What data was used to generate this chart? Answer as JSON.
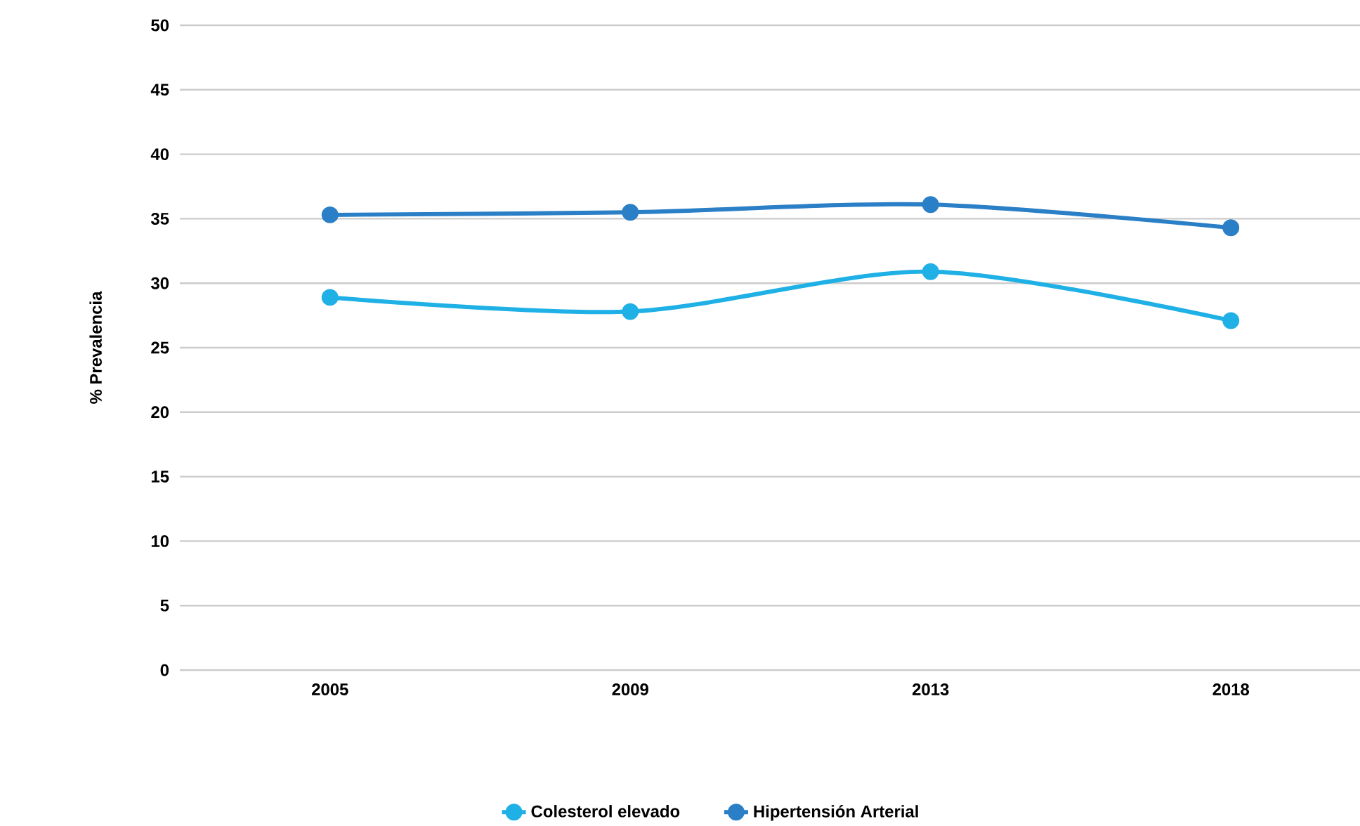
{
  "chart_data": {
    "type": "line",
    "ylabel": "% Prevalencia",
    "categories": [
      "2005",
      "2009",
      "2013",
      "2018"
    ],
    "series": [
      {
        "name": "Colesterol elevado",
        "color": "#1fb0e6",
        "values": [
          28.9,
          27.8,
          30.9,
          27.1
        ]
      },
      {
        "name": "Hipertensión Arterial",
        "color": "#2a7fc6",
        "values": [
          35.3,
          35.5,
          36.1,
          34.3
        ]
      }
    ],
    "ylim": [
      0,
      50
    ],
    "yticks": [
      0,
      5,
      10,
      15,
      20,
      25,
      30,
      35,
      40,
      45,
      50
    ],
    "grid": "y",
    "legend": "bottom",
    "marker": "circle",
    "line_style": "solid"
  }
}
